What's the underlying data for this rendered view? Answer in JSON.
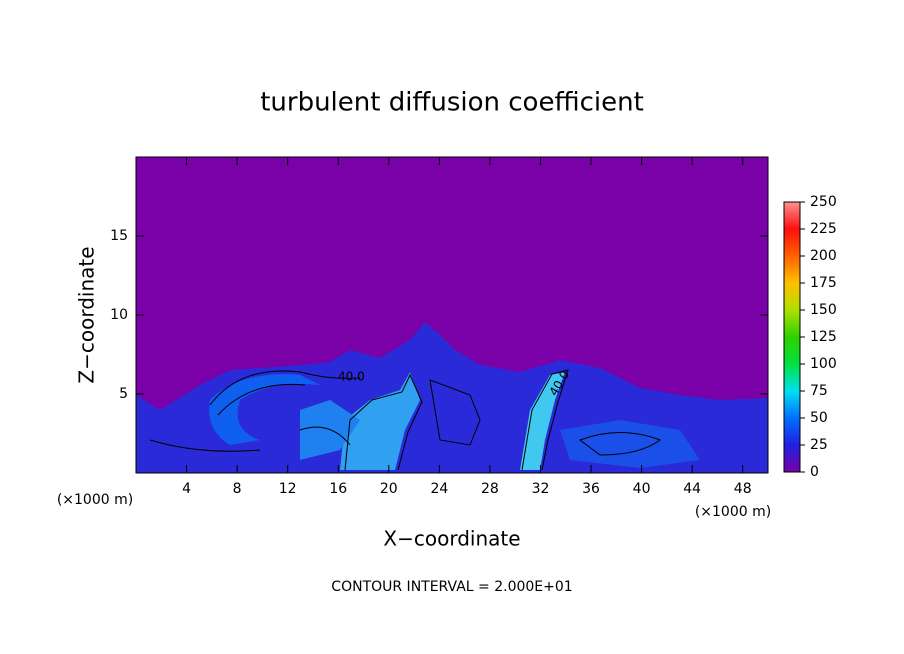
{
  "chart_data": {
    "type": "contour",
    "title": "turbulent diffusion coefficient",
    "xlabel": "X−coordinate",
    "ylabel": "Z−coordinate",
    "x_unit": "(×1000 m)",
    "xlim": [
      0,
      50
    ],
    "xticks": [
      4,
      8,
      12,
      16,
      20,
      24,
      28,
      32,
      36,
      40,
      44,
      48
    ],
    "ylim": [
      0,
      20
    ],
    "yticks": [
      5,
      10,
      15
    ],
    "colorbar": {
      "lim": [
        0,
        250
      ],
      "ticks": [
        0,
        25,
        50,
        75,
        100,
        125,
        150,
        175,
        200,
        225,
        250
      ]
    },
    "contour_labels": [
      "40.0",
      "40.0"
    ],
    "footer": "CONTOUR INTERVAL = 2.000E+01"
  }
}
